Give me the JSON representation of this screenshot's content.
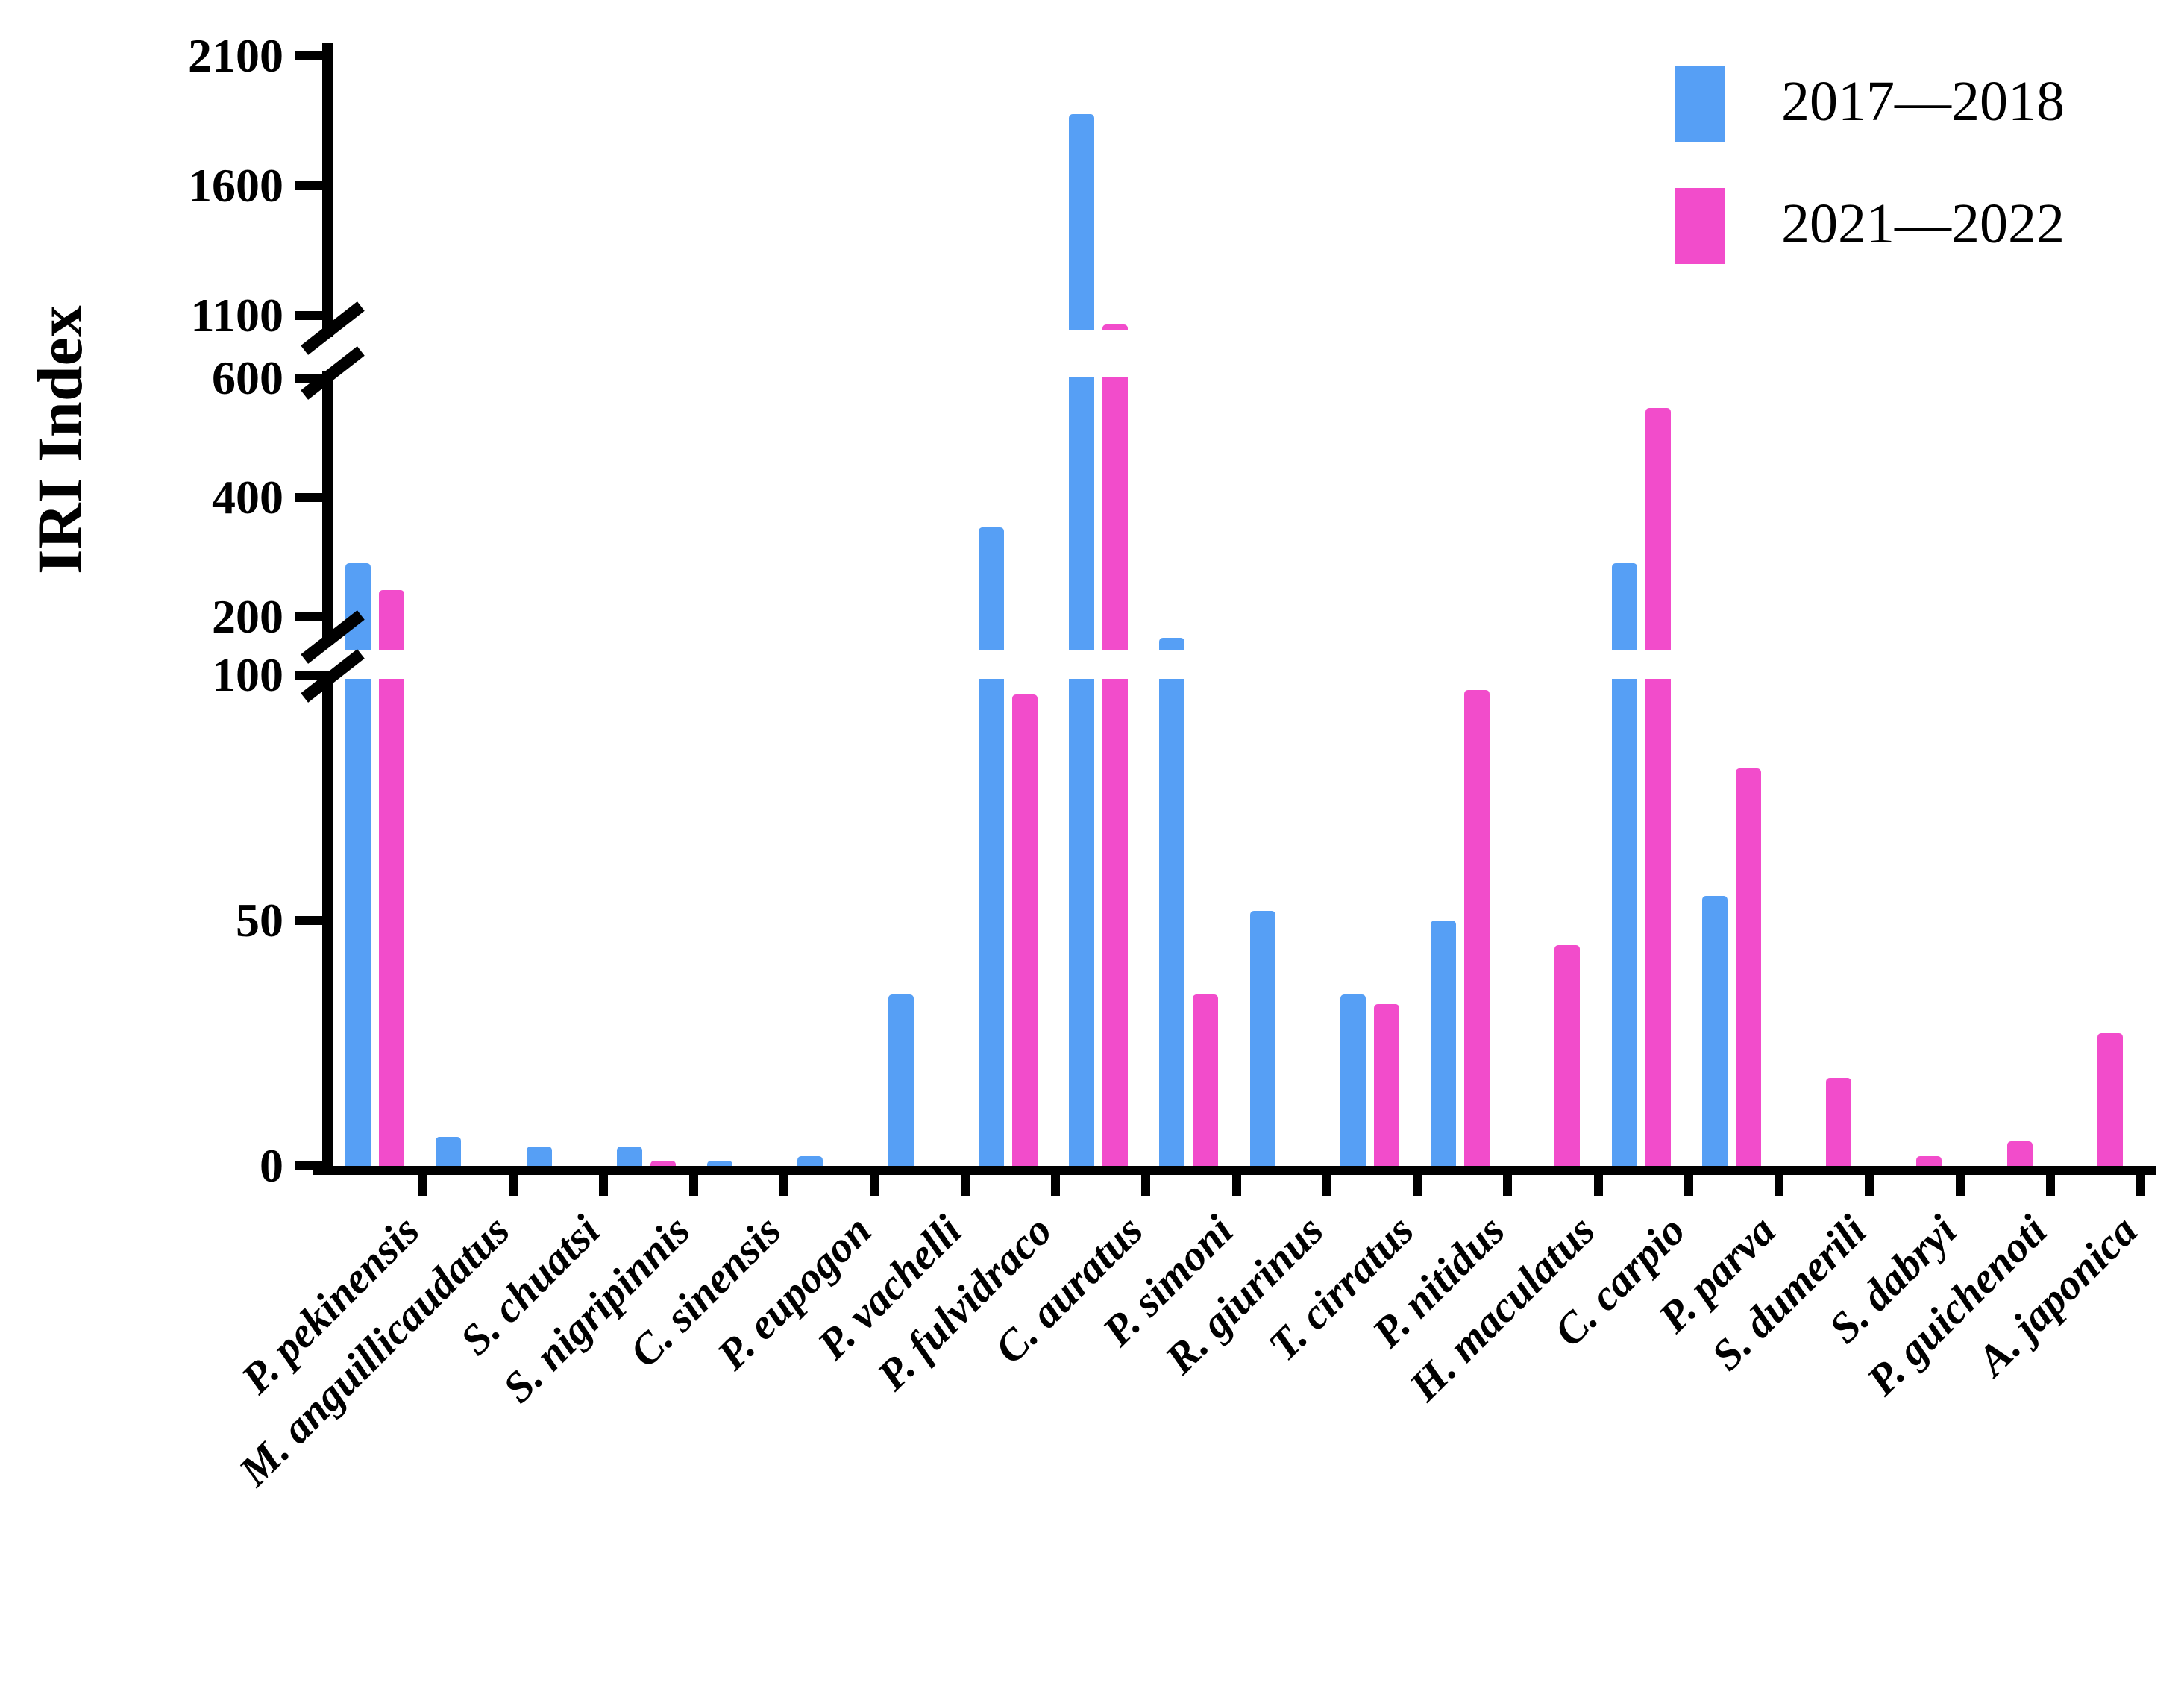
{
  "chart_data": {
    "type": "bar",
    "title": "",
    "ylabel": "IRI Index",
    "xlabel": "",
    "grid": false,
    "legend_position": "top-right",
    "categories": [
      "P. pekinensis",
      "M. anguillicaudatus",
      "S. chuatsi",
      "S. nigripinnis",
      "C. sinensis",
      "P. eupogon",
      "P. vachelli",
      "P. fulvidraco",
      "C. auratus",
      "P. simoni",
      "R. giurinus",
      "T. cirratus",
      "P. nitidus",
      "H. maculatus",
      "C. carpio",
      "P. parva",
      "S. dumerili",
      "S. dabryi",
      "P. guichenoti",
      "A. japonica"
    ],
    "series": [
      {
        "name": "2017—2018",
        "color": "#569FF5",
        "values": [
          290,
          6,
          4,
          4,
          1,
          2,
          35,
          350,
          1875,
          165,
          52,
          35,
          50,
          0,
          290,
          55,
          0,
          0,
          0,
          0
        ]
      },
      {
        "name": "2021—2022",
        "color": "#F24CCB",
        "values": [
          245,
          0,
          0,
          1,
          0,
          0,
          0,
          96,
          1065,
          35,
          0,
          33,
          97,
          45,
          550,
          81,
          18,
          2,
          5,
          27
        ]
      }
    ],
    "y_axis": {
      "label": "IRI Index",
      "tick_values": [
        0,
        50,
        100,
        200,
        400,
        600,
        1100,
        1600,
        2100
      ],
      "tick_labels": [
        "0",
        "50",
        "100",
        "200",
        "400",
        "600",
        "1100",
        "1600",
        "2100"
      ],
      "axis_breaks": [
        {
          "between": [
            100,
            200
          ]
        },
        {
          "between": [
            600,
            1100
          ]
        }
      ],
      "segments": [
        {
          "range": [
            0,
            100
          ]
        },
        {
          "range": [
            200,
            600
          ]
        },
        {
          "range": [
            1100,
            2100
          ]
        }
      ]
    }
  },
  "legend": {
    "items": [
      {
        "label": "2017—2018",
        "color": "#569FF5"
      },
      {
        "label": "2021—2022",
        "color": "#F24CCB"
      }
    ]
  }
}
